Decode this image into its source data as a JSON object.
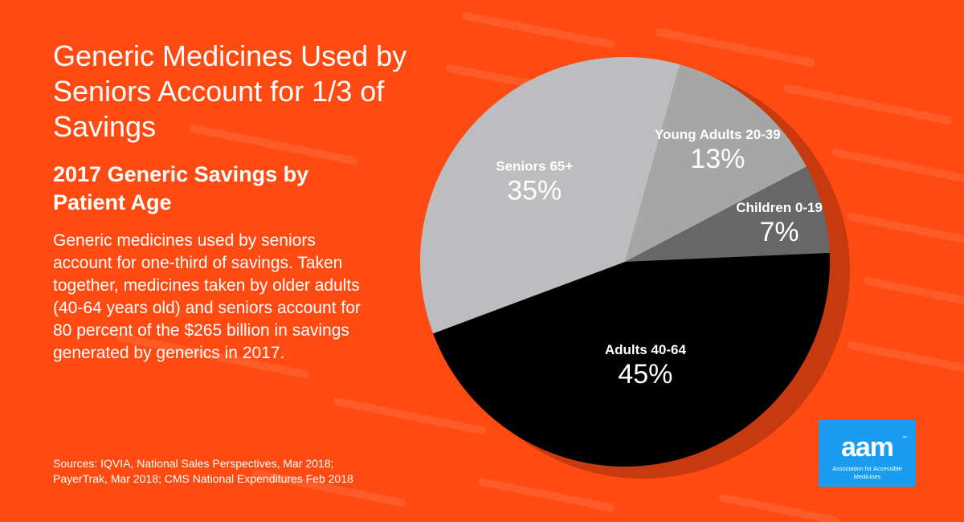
{
  "header": {
    "title": "Generic Medicines Used by Seniors Account for 1/3 of Savings",
    "subtitle": "2017 Generic Savings by Patient Age",
    "body": "Generic medicines used by seniors account for one-third of savings. Taken together, medicines taken by older adults (40-64 years old) and seniors account for 80 percent of the $265 billion in savings generated by generics in 2017.",
    "sources": "Sources: IQVIA, National Sales Perspectives, Mar 2018; PayerTrak, Mar 2018; CMS National Expenditures Feb 2018"
  },
  "logo": {
    "mark": "aam",
    "tagline": "Association for Accessible Medicines",
    "tm": "™"
  },
  "colors": {
    "background": "#ff4a12",
    "logo": "#1a9cf0"
  },
  "chart_data": {
    "type": "pie",
    "title": "2017 Generic Savings by Patient Age",
    "unit": "%",
    "slices": [
      {
        "label": "Young Adults 20-39",
        "value": 13,
        "display": "13%",
        "color": "#a6a6a6"
      },
      {
        "label": "Children 0-19",
        "value": 7,
        "display": "7%",
        "color": "#676767"
      },
      {
        "label": "Adults 40-64",
        "value": 45,
        "display": "45%",
        "color": "#000000"
      },
      {
        "label": "Seniors 65+",
        "value": 35,
        "display": "35%",
        "color": "#bdbdc0"
      }
    ]
  }
}
